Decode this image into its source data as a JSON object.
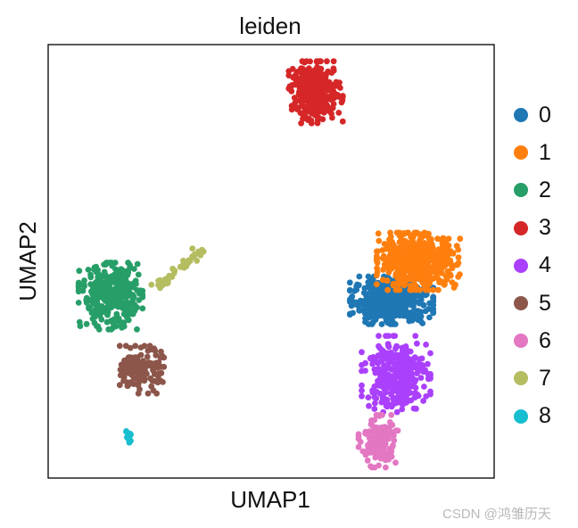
{
  "chart_data": {
    "type": "scatter",
    "title": "leiden",
    "xlabel": "UMAP1",
    "ylabel": "UMAP2",
    "xlim": [
      0,
      10
    ],
    "ylim": [
      0,
      10
    ],
    "grid": false,
    "ticks": false,
    "legend_position": "right",
    "series": [
      {
        "name": "0",
        "color": "#1f77b4",
        "center": [
          7.7,
          4.1
        ],
        "spread": [
          0.85,
          0.5
        ],
        "n": 520
      },
      {
        "name": "1",
        "color": "#ff7f0e",
        "center": [
          8.3,
          5.0
        ],
        "spread": [
          0.85,
          0.6
        ],
        "n": 560
      },
      {
        "name": "2",
        "color": "#279e68",
        "center": [
          1.4,
          4.2
        ],
        "spread": [
          0.65,
          0.7
        ],
        "n": 360
      },
      {
        "name": "3",
        "color": "#d62728",
        "center": [
          6.0,
          8.9
        ],
        "spread": [
          0.55,
          0.65
        ],
        "n": 300
      },
      {
        "name": "4",
        "color": "#aa40fc",
        "center": [
          7.8,
          2.4
        ],
        "spread": [
          0.7,
          0.8
        ],
        "n": 320
      },
      {
        "name": "5",
        "color": "#8c564b",
        "center": [
          2.1,
          2.5
        ],
        "spread": [
          0.45,
          0.5
        ],
        "n": 150
      },
      {
        "name": "6",
        "color": "#e377c2",
        "center": [
          7.4,
          0.85
        ],
        "spread": [
          0.4,
          0.55
        ],
        "n": 140
      },
      {
        "name": "7",
        "color": "#b5bd61",
        "from": [
          2.4,
          4.4
        ],
        "to": [
          3.5,
          5.3
        ],
        "n": 45
      },
      {
        "name": "8",
        "color": "#17becf",
        "center": [
          1.8,
          0.95
        ],
        "spread": [
          0.08,
          0.12
        ],
        "n": 12
      }
    ]
  },
  "watermark": "CSDN @鸿雏历天"
}
